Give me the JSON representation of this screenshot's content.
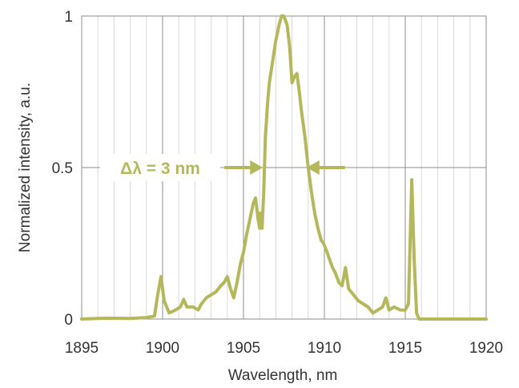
{
  "chart_data": {
    "type": "line",
    "xlabel": "Wavelength, nm",
    "ylabel": "Normalized intensity, a.u.",
    "xlim": [
      1895,
      1920
    ],
    "ylim": [
      0,
      1
    ],
    "x_ticks": [
      1895,
      1900,
      1905,
      1910,
      1915,
      1920
    ],
    "y_ticks": [
      0,
      0.5,
      1
    ],
    "y_tick_labels": [
      "0",
      "0.5",
      "1"
    ],
    "x_minor_step": 1,
    "grid": true,
    "series": [
      {
        "color": "#b5b85a",
        "x": [
          1895.0,
          1896.5,
          1898.0,
          1899.0,
          1899.5,
          1899.7,
          1899.9,
          1900.1,
          1900.4,
          1900.8,
          1901.1,
          1901.3,
          1901.5,
          1901.9,
          1902.2,
          1902.4,
          1902.7,
          1903.0,
          1903.3,
          1903.6,
          1903.8,
          1904.0,
          1904.2,
          1904.4,
          1904.6,
          1904.8,
          1905.0,
          1905.2,
          1905.4,
          1905.6,
          1905.75,
          1905.9,
          1906.0,
          1906.05,
          1906.15,
          1906.25,
          1906.35,
          1906.5,
          1906.6,
          1906.8,
          1907.0,
          1907.2,
          1907.35,
          1907.5,
          1907.7,
          1907.85,
          1908.0,
          1908.15,
          1908.3,
          1908.45,
          1908.6,
          1908.8,
          1909.0,
          1909.2,
          1909.4,
          1909.6,
          1909.8,
          1909.95,
          1910.1,
          1910.3,
          1910.5,
          1910.7,
          1910.9,
          1911.1,
          1911.3,
          1911.5,
          1911.8,
          1912.1,
          1912.4,
          1912.7,
          1913.0,
          1913.3,
          1913.6,
          1913.8,
          1914.0,
          1914.3,
          1914.7,
          1915.0,
          1915.2,
          1915.4,
          1915.55,
          1915.7,
          1915.85,
          1916.2,
          1918.0,
          1920.0
        ],
        "y": [
          0.0,
          0.003,
          0.002,
          0.005,
          0.01,
          0.08,
          0.14,
          0.06,
          0.02,
          0.03,
          0.04,
          0.065,
          0.04,
          0.04,
          0.03,
          0.05,
          0.07,
          0.08,
          0.09,
          0.11,
          0.12,
          0.14,
          0.1,
          0.07,
          0.12,
          0.18,
          0.22,
          0.28,
          0.33,
          0.38,
          0.4,
          0.33,
          0.3,
          0.35,
          0.3,
          0.42,
          0.6,
          0.72,
          0.78,
          0.85,
          0.92,
          0.97,
          1.0,
          1.0,
          0.97,
          0.9,
          0.78,
          0.8,
          0.81,
          0.75,
          0.68,
          0.6,
          0.5,
          0.42,
          0.35,
          0.3,
          0.26,
          0.25,
          0.23,
          0.2,
          0.17,
          0.15,
          0.12,
          0.11,
          0.17,
          0.1,
          0.08,
          0.06,
          0.05,
          0.04,
          0.02,
          0.03,
          0.04,
          0.07,
          0.03,
          0.04,
          0.03,
          0.03,
          0.05,
          0.46,
          0.2,
          0.02,
          0.0,
          0.0,
          0.0,
          0.0
        ]
      }
    ],
    "annotation": {
      "text": "Δλ = 3 nm",
      "y": 0.5,
      "left_arrow_tip_x": 1906.2,
      "right_arrow_tip_x": 1908.9
    }
  }
}
